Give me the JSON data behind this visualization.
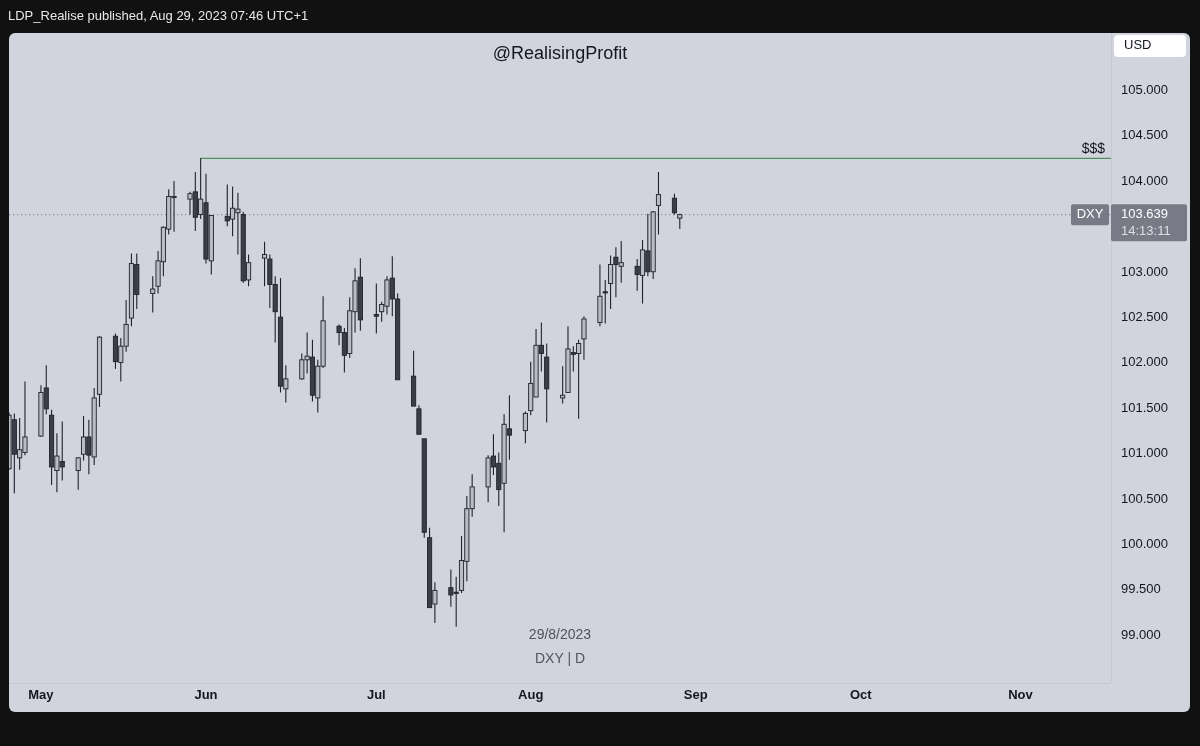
{
  "chart_data": {
    "type": "candlestick",
    "title": "@RealisingProfit",
    "ylabel": "USD",
    "x": [
      "2023-04-25",
      "2023-04-26",
      "2023-04-27",
      "2023-04-28",
      "2023-05-01",
      "2023-05-02",
      "2023-05-03",
      "2023-05-04",
      "2023-05-05",
      "2023-05-08",
      "2023-05-09",
      "2023-05-10",
      "2023-05-11",
      "2023-05-12",
      "2023-05-15",
      "2023-05-16",
      "2023-05-17",
      "2023-05-18",
      "2023-05-19",
      "2023-05-22",
      "2023-05-23",
      "2023-05-24",
      "2023-05-25",
      "2023-05-26",
      "2023-05-29",
      "2023-05-30",
      "2023-05-31",
      "2023-06-01",
      "2023-06-02",
      "2023-06-05",
      "2023-06-06",
      "2023-06-07",
      "2023-06-08",
      "2023-06-09",
      "2023-06-12",
      "2023-06-13",
      "2023-06-14",
      "2023-06-15",
      "2023-06-16",
      "2023-06-19",
      "2023-06-20",
      "2023-06-21",
      "2023-06-22",
      "2023-06-23",
      "2023-06-26",
      "2023-06-27",
      "2023-06-28",
      "2023-06-29",
      "2023-06-30",
      "2023-07-03",
      "2023-07-04",
      "2023-07-05",
      "2023-07-06",
      "2023-07-07",
      "2023-07-10",
      "2023-07-11",
      "2023-07-12",
      "2023-07-13",
      "2023-07-14",
      "2023-07-17",
      "2023-07-18",
      "2023-07-19",
      "2023-07-20",
      "2023-07-21",
      "2023-07-24",
      "2023-07-25",
      "2023-07-26",
      "2023-07-27",
      "2023-07-28",
      "2023-07-31",
      "2023-08-01",
      "2023-08-02",
      "2023-08-03",
      "2023-08-04",
      "2023-08-07",
      "2023-08-08",
      "2023-08-09",
      "2023-08-10",
      "2023-08-11",
      "2023-08-14",
      "2023-08-15",
      "2023-08-16",
      "2023-08-17",
      "2023-08-18",
      "2023-08-21",
      "2023-08-22",
      "2023-08-23",
      "2023-08-24",
      "2023-08-25",
      "2023-08-28",
      "2023-08-29"
    ],
    "ohlc": [
      [
        100.84,
        101.46,
        100.83,
        101.43
      ],
      [
        101.38,
        101.45,
        100.57,
        101.0
      ],
      [
        100.96,
        101.4,
        100.83,
        101.05
      ],
      [
        101.02,
        101.8,
        100.99,
        101.19
      ],
      [
        101.2,
        101.76,
        101.19,
        101.68
      ],
      [
        101.73,
        101.98,
        101.44,
        101.5
      ],
      [
        101.43,
        101.49,
        100.66,
        100.86
      ],
      [
        100.82,
        101.23,
        100.58,
        100.98
      ],
      [
        100.92,
        101.36,
        100.71,
        100.86
      ],
      [
        100.82,
        100.97,
        100.61,
        100.96
      ],
      [
        101.0,
        101.42,
        100.93,
        101.19
      ],
      [
        101.19,
        101.38,
        100.78,
        100.99
      ],
      [
        100.97,
        101.73,
        100.88,
        101.62
      ],
      [
        101.66,
        102.3,
        101.52,
        102.29
      ],
      [
        102.3,
        102.33,
        101.94,
        102.02
      ],
      [
        102.01,
        102.28,
        101.8,
        102.19
      ],
      [
        102.19,
        102.7,
        102.13,
        102.43
      ],
      [
        102.5,
        103.21,
        102.41,
        103.1
      ],
      [
        103.09,
        103.21,
        102.6,
        102.76
      ],
      [
        102.77,
        102.96,
        102.56,
        102.82
      ],
      [
        102.85,
        103.24,
        102.77,
        103.13
      ],
      [
        103.12,
        103.51,
        102.96,
        103.5
      ],
      [
        103.48,
        103.92,
        103.42,
        103.84
      ],
      [
        103.83,
        104.01,
        103.45,
        103.84
      ],
      [
        103.81,
        103.89,
        103.64,
        103.87
      ],
      [
        103.89,
        104.11,
        103.46,
        103.61
      ],
      [
        103.64,
        104.26,
        103.59,
        103.81
      ],
      [
        103.77,
        104.09,
        103.1,
        103.15
      ],
      [
        103.13,
        103.63,
        102.98,
        103.63
      ],
      [
        103.62,
        103.97,
        103.51,
        103.57
      ],
      [
        103.59,
        103.95,
        103.4,
        103.71
      ],
      [
        103.66,
        103.88,
        103.2,
        103.7
      ],
      [
        103.64,
        103.67,
        102.89,
        102.91
      ],
      [
        102.92,
        103.2,
        102.85,
        103.11
      ],
      [
        103.16,
        103.34,
        102.85,
        103.2
      ],
      [
        103.15,
        103.2,
        102.61,
        102.87
      ],
      [
        102.87,
        102.96,
        102.23,
        102.57
      ],
      [
        102.51,
        102.94,
        101.68,
        101.75
      ],
      [
        101.72,
        101.98,
        101.57,
        101.83
      ],
      [
        101.83,
        102.11,
        101.82,
        102.04
      ],
      [
        102.04,
        102.34,
        101.89,
        102.08
      ],
      [
        102.07,
        102.26,
        101.58,
        101.65
      ],
      [
        101.62,
        102.04,
        101.46,
        101.97
      ],
      [
        101.97,
        102.74,
        101.95,
        102.47
      ],
      [
        102.41,
        102.43,
        102.2,
        102.34
      ],
      [
        102.34,
        102.39,
        101.9,
        102.09
      ],
      [
        102.11,
        102.73,
        102.06,
        102.58
      ],
      [
        102.57,
        103.05,
        102.34,
        102.91
      ],
      [
        102.95,
        103.16,
        102.36,
        102.48
      ],
      [
        102.54,
        102.88,
        102.33,
        102.52
      ],
      [
        102.57,
        102.68,
        102.46,
        102.65
      ],
      [
        102.63,
        102.96,
        102.54,
        102.92
      ],
      [
        102.94,
        103.18,
        102.52,
        102.71
      ],
      [
        102.71,
        102.77,
        101.82,
        101.82
      ],
      [
        101.86,
        102.14,
        101.53,
        101.53
      ],
      [
        101.5,
        101.54,
        101.22,
        101.22
      ],
      [
        101.17,
        101.17,
        100.08,
        100.14
      ],
      [
        100.08,
        100.19,
        99.31,
        99.31
      ],
      [
        99.35,
        99.59,
        99.14,
        99.5
      ],
      [
        99.53,
        99.73,
        99.32,
        99.45
      ],
      [
        99.48,
        99.65,
        99.1,
        99.47
      ],
      [
        99.5,
        100.1,
        99.47,
        99.83
      ],
      [
        99.82,
        100.54,
        99.6,
        100.4
      ],
      [
        100.4,
        100.78,
        100.31,
        100.64
      ],
      [
        100.64,
        100.99,
        100.47,
        100.96
      ],
      [
        100.98,
        101.22,
        100.77,
        100.86
      ],
      [
        100.9,
        101.02,
        100.43,
        100.61
      ],
      [
        100.68,
        101.44,
        100.14,
        101.33
      ],
      [
        101.28,
        101.65,
        100.94,
        101.21
      ],
      [
        101.26,
        101.47,
        101.12,
        101.45
      ],
      [
        101.48,
        102.02,
        101.43,
        101.78
      ],
      [
        101.63,
        102.38,
        101.63,
        102.2
      ],
      [
        102.2,
        102.45,
        101.91,
        102.11
      ],
      [
        102.07,
        102.22,
        101.35,
        101.72
      ],
      [
        101.62,
        101.97,
        101.56,
        101.65
      ],
      [
        101.68,
        102.41,
        101.68,
        102.16
      ],
      [
        102.12,
        102.19,
        101.91,
        102.1
      ],
      [
        102.11,
        102.26,
        101.39,
        102.22
      ],
      [
        102.27,
        102.52,
        102.04,
        102.49
      ],
      [
        102.45,
        103.09,
        102.41,
        102.74
      ],
      [
        102.79,
        102.92,
        102.44,
        102.78
      ],
      [
        102.88,
        103.19,
        102.6,
        103.09
      ],
      [
        103.17,
        103.28,
        102.73,
        103.09
      ],
      [
        103.07,
        103.35,
        102.89,
        103.11
      ],
      [
        103.07,
        103.15,
        102.8,
        102.98
      ],
      [
        102.97,
        103.36,
        102.66,
        103.25
      ],
      [
        103.24,
        103.65,
        102.96,
        103.01
      ],
      [
        103.01,
        103.68,
        102.93,
        103.67
      ],
      [
        103.74,
        104.11,
        103.42,
        103.86
      ],
      [
        103.82,
        103.87,
        103.64,
        103.66
      ],
      [
        103.6,
        103.65,
        103.48,
        103.639
      ]
    ],
    "series": [
      {
        "type": "line",
        "name": "$$$",
        "color": "#4f8f5f",
        "x": [
          "2023-05-31",
          "2023-11-18"
        ],
        "values": [
          104.26,
          104.26
        ]
      }
    ],
    "ref_lines": [
      {
        "axis": "y",
        "value": 103.639,
        "label": "DXY",
        "color": "#787b86",
        "line_style": "dotted"
      }
    ],
    "annotations": [
      "LDP_Realise published, Aug 29, 2023 07:46 UTC+1",
      "14:13:11",
      "29/8/2023",
      "DXY | D"
    ],
    "xlim": [
      "2023-04-25",
      "2023-11-18"
    ],
    "xticks": [
      {
        "value": "2023-05-01",
        "label": "May"
      },
      {
        "value": "2023-06-01",
        "label": "Jun"
      },
      {
        "value": "2023-07-03",
        "label": "Jul"
      },
      {
        "value": "2023-08-01",
        "label": "Aug"
      },
      {
        "value": "2023-09-01",
        "label": "Sep"
      },
      {
        "value": "2023-10-02",
        "label": "Oct"
      },
      {
        "value": "2023-11-01",
        "label": "Nov"
      }
    ],
    "ylim": [
      98.48,
      105.64
    ],
    "yticks": [
      {
        "value": 99,
        "label": "99.000"
      },
      {
        "value": 99.5,
        "label": "99.500"
      },
      {
        "value": 100,
        "label": "100.000"
      },
      {
        "value": 100.5,
        "label": "100.500"
      },
      {
        "value": 101,
        "label": "101.000"
      },
      {
        "value": 101.5,
        "label": "101.500"
      },
      {
        "value": 102,
        "label": "102.000"
      },
      {
        "value": 102.5,
        "label": "102.500"
      },
      {
        "value": 103,
        "label": "103.000"
      },
      {
        "value": 103.639,
        "label": "103.639"
      },
      {
        "value": 104,
        "label": "104.000"
      },
      {
        "value": 104.5,
        "label": "104.500"
      },
      {
        "value": 105,
        "label": "105.000"
      }
    ]
  }
}
